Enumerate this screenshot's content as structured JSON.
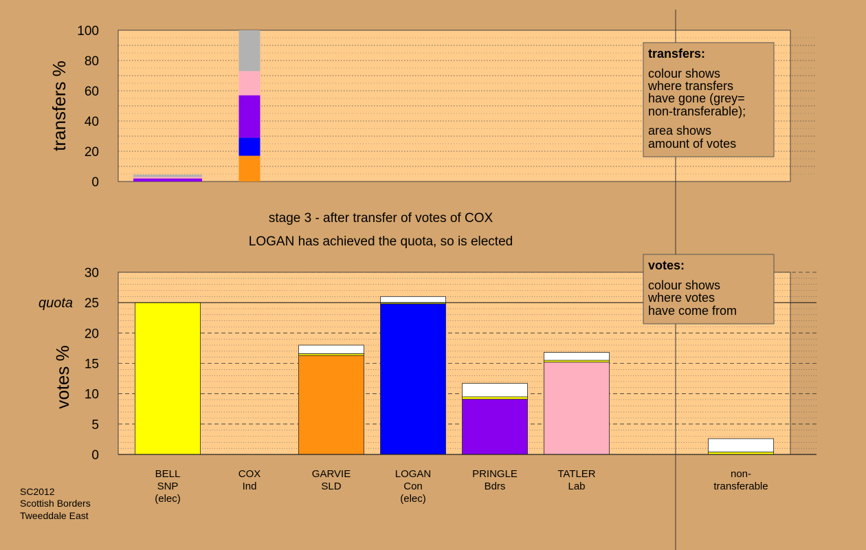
{
  "colors": {
    "page_bg": "#d4a56e",
    "plot_bg": "#ffcc8c",
    "BELL": "#ffff00",
    "COX": "#b2b2b2",
    "GARVIE": "#ff9010",
    "LOGAN": "#0000ff",
    "PRINGLE": "#8800ee",
    "TATLER": "#ffb0c0",
    "non-transferable": "#b2b2b2",
    "new_transfer": "#ffffff"
  },
  "caption": {
    "line1": "stage 3 - after transfer of votes of COX",
    "line2": "LOGAN has achieved the quota, so is elected"
  },
  "footer": [
    "SC2012",
    "Scottish Borders",
    "Tweeddale East"
  ],
  "legend_transfers": {
    "title": "transfers:",
    "lines1": [
      "colour shows",
      "where transfers",
      "have gone (grey=",
      "non-transferable);"
    ],
    "lines2": [
      "area shows",
      "amount of votes"
    ]
  },
  "legend_votes": {
    "title": "votes:",
    "lines": [
      "colour shows",
      "where votes",
      "have come from"
    ]
  },
  "candidates": [
    {
      "name": "BELL",
      "party": "SNP",
      "note": "(elec)"
    },
    {
      "name": "COX",
      "party": "Ind",
      "note": ""
    },
    {
      "name": "GARVIE",
      "party": "SLD",
      "note": ""
    },
    {
      "name": "LOGAN",
      "party": "Con",
      "note": "(elec)"
    },
    {
      "name": "PRINGLE",
      "party": "Bdrs",
      "note": ""
    },
    {
      "name": "TATLER",
      "party": "Lab",
      "note": ""
    },
    {
      "name": "non-",
      "party": "transferable",
      "note": ""
    }
  ],
  "chart_data": [
    {
      "type": "bar",
      "stacked": true,
      "ylabel": "transfers %",
      "ylim": [
        0,
        100
      ],
      "yticks": [
        0,
        20,
        40,
        60,
        80,
        100
      ],
      "grid": "dotted horizontal",
      "bars": [
        {
          "candidate": "BELL",
          "segments": [
            {
              "to": "PRINGLE",
              "value": 2
            },
            {
              "to": "TATLER",
              "value": 1
            },
            {
              "to": "non-transferable",
              "value": 1.5
            }
          ]
        },
        {
          "candidate": "COX",
          "segments": [
            {
              "to": "GARVIE",
              "value": 17
            },
            {
              "to": "LOGAN",
              "value": 12
            },
            {
              "to": "PRINGLE",
              "value": 28
            },
            {
              "to": "TATLER",
              "value": 16
            },
            {
              "to": "non-transferable",
              "value": 27
            }
          ]
        }
      ]
    },
    {
      "type": "bar",
      "stacked": true,
      "ylabel": "votes %",
      "ylim": [
        0,
        30
      ],
      "yticks": [
        0,
        5,
        10,
        15,
        20,
        25,
        30
      ],
      "quota": 25,
      "quota_label": "quota",
      "grid": "dashed major, dotted minor",
      "bars": [
        {
          "candidate": "BELL",
          "segments": [
            {
              "from": "BELL",
              "value": 25
            }
          ]
        },
        {
          "candidate": "COX",
          "segments": []
        },
        {
          "candidate": "GARVIE",
          "segments": [
            {
              "from": "GARVIE",
              "value": 16.3
            },
            {
              "from": "BELL",
              "value": 0.3
            },
            {
              "from": "COX",
              "value": 1.4
            }
          ]
        },
        {
          "candidate": "LOGAN",
          "segments": [
            {
              "from": "LOGAN",
              "value": 24.8
            },
            {
              "from": "BELL",
              "value": 0.2
            },
            {
              "from": "COX",
              "value": 1.0
            }
          ]
        },
        {
          "candidate": "PRINGLE",
          "segments": [
            {
              "from": "PRINGLE",
              "value": 9.1
            },
            {
              "from": "BELL",
              "value": 0.4
            },
            {
              "from": "COX",
              "value": 2.2
            }
          ]
        },
        {
          "candidate": "TATLER",
          "segments": [
            {
              "from": "TATLER",
              "value": 15.2
            },
            {
              "from": "BELL",
              "value": 0.3
            },
            {
              "from": "COX",
              "value": 1.3
            }
          ]
        },
        {
          "candidate": "non-transferable",
          "segments": [
            {
              "from": "BELL",
              "value": 0.4
            },
            {
              "from": "COX",
              "value": 2.2
            }
          ]
        }
      ]
    }
  ]
}
